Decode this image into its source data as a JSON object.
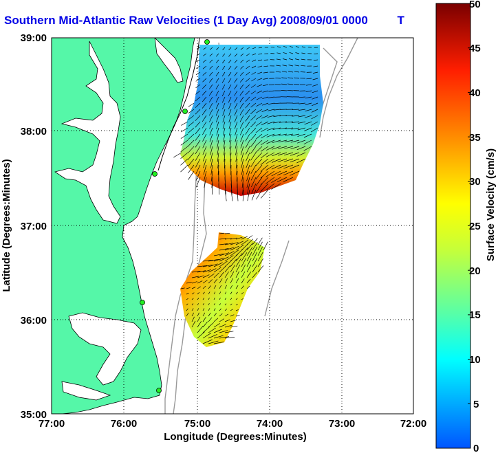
{
  "title": "Southern Mid-Atlantic Raw Velocities (1 Day Avg) 2008/09/01 0000 ",
  "title_tail": "T",
  "map": {
    "xlabel": "Longitude (Degrees:Minutes)",
    "ylabel": "Latitude (Degrees:Minutes)",
    "x_ticks": [
      "77:00",
      "76:00",
      "75:00",
      "74:00",
      "73:00",
      "72:00"
    ],
    "y_ticks": [
      "39:00",
      "38:00",
      "37:00",
      "36:00",
      "35:00"
    ],
    "lon_range": [
      -77,
      -72
    ],
    "lat_range": [
      35,
      39
    ],
    "grid": "dotted",
    "land_color": "#55f7a8",
    "water_color": "#ffffff",
    "station_markers": 5
  },
  "colorbar": {
    "label": "Surface Velocity (cm/s)",
    "ticks": [
      "50",
      "45",
      "40",
      "35",
      "30",
      "25",
      "20",
      "15",
      "10",
      "5",
      "0"
    ],
    "range": [
      0,
      50
    ],
    "colormap": "jet"
  }
}
